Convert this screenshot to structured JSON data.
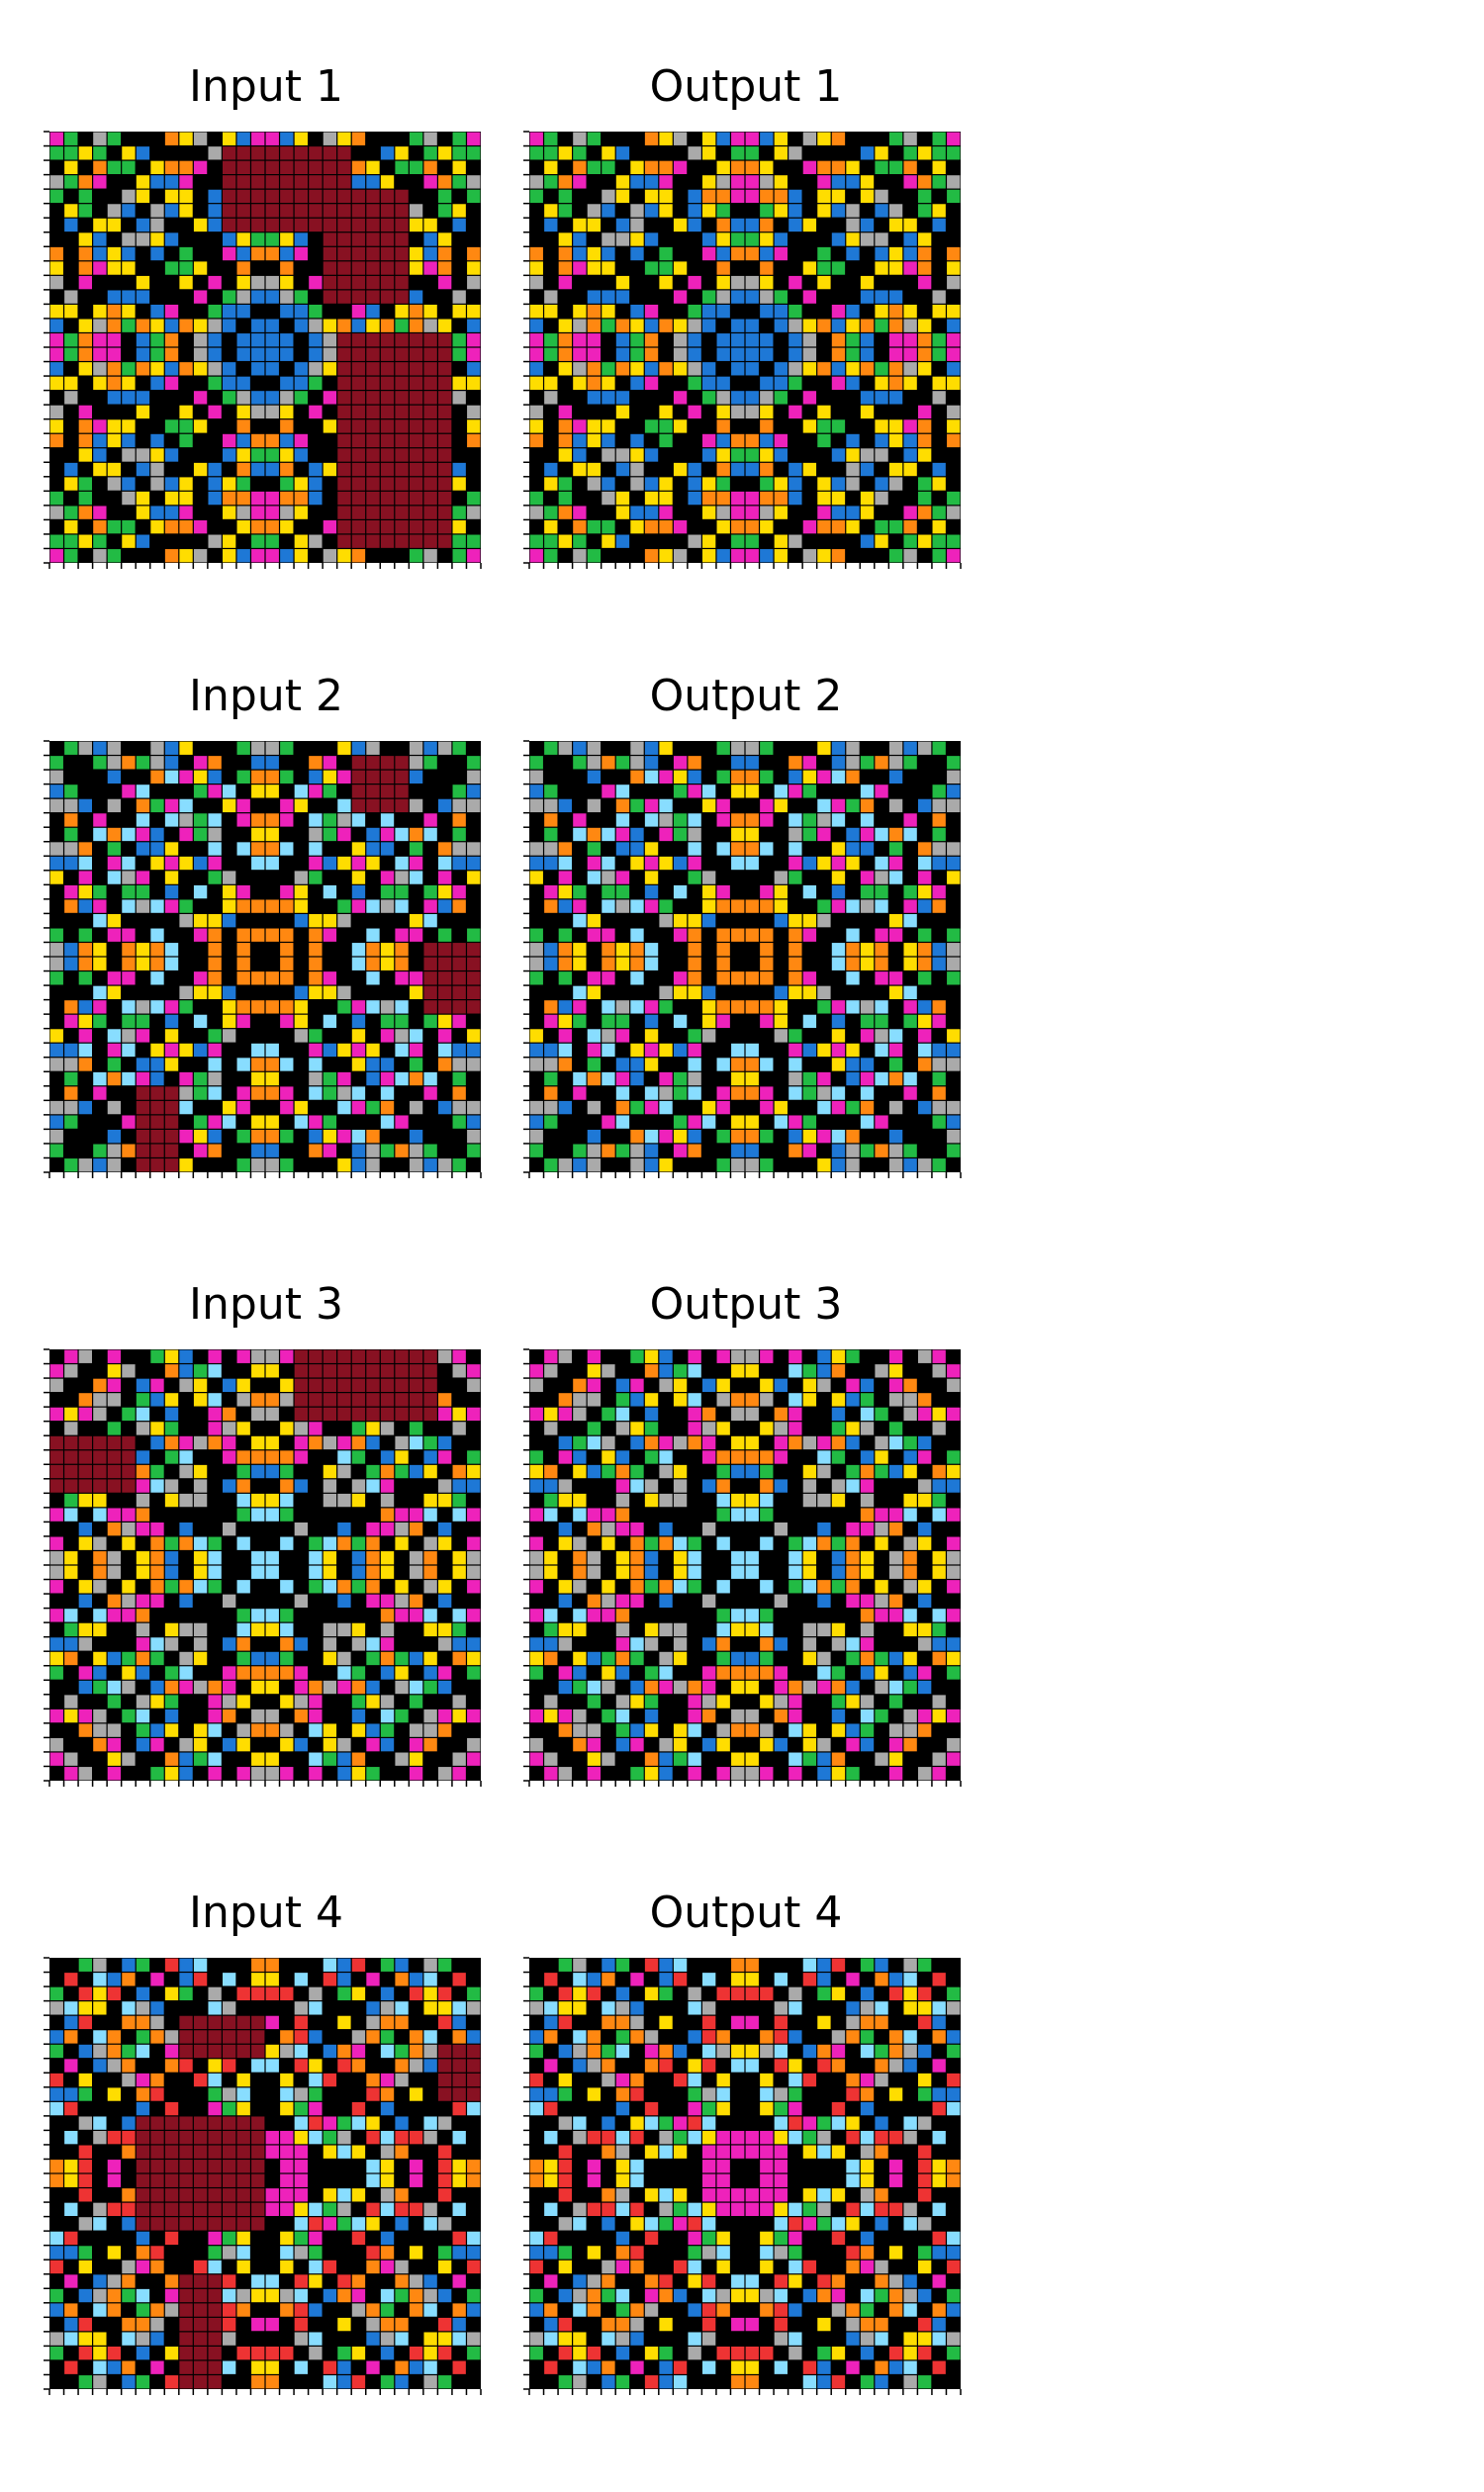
{
  "palette": [
    "#000000",
    "#1e78d6",
    "#ee3333",
    "#22bb44",
    "#ffdd00",
    "#aaaaaa",
    "#ee22bb",
    "#ff8811",
    "#88ddff",
    "#881122"
  ],
  "background": "#ffffff",
  "panels": [
    {
      "title": "Input 1"
    },
    {
      "title": "Output 1"
    },
    {
      "title": "Input 2"
    },
    {
      "title": "Output 2"
    },
    {
      "title": "Input 3"
    },
    {
      "title": "Output 3"
    },
    {
      "title": "Input 4"
    },
    {
      "title": "Output 4"
    }
  ],
  "grids": [
    {
      "seed": 1,
      "rows": 30,
      "cols": 30,
      "colors": [
        7,
        4,
        1,
        5,
        6,
        3
      ],
      "center": 1,
      "masks": [
        [
          1,
          12,
          6,
          9
        ],
        [
          4,
          19,
          8,
          6
        ],
        [
          14,
          20,
          15,
          8
        ]
      ]
    },
    {
      "seed": 2,
      "rows": 30,
      "cols": 30,
      "colors": [
        7,
        4,
        1,
        5,
        6,
        3
      ],
      "center": 1,
      "masks": []
    },
    {
      "seed": 3,
      "rows": 30,
      "cols": 30,
      "colors": [
        7,
        1,
        8,
        5,
        6,
        3,
        4
      ],
      "center": 7,
      "masks": [
        [
          1,
          21,
          4,
          4
        ],
        [
          14,
          26,
          5,
          5
        ],
        [
          24,
          6,
          7,
          3
        ]
      ]
    },
    {
      "seed": 4,
      "rows": 30,
      "cols": 30,
      "colors": [
        7,
        1,
        8,
        5,
        6,
        3,
        4
      ],
      "center": 7,
      "masks": []
    },
    {
      "seed": 5,
      "rows": 30,
      "cols": 30,
      "colors": [
        8,
        7,
        4,
        1,
        5,
        3,
        6
      ],
      "center": 8,
      "masks": [
        [
          0,
          17,
          5,
          10
        ],
        [
          6,
          0,
          4,
          6
        ]
      ]
    },
    {
      "seed": 6,
      "rows": 30,
      "cols": 30,
      "colors": [
        8,
        7,
        4,
        1,
        5,
        3,
        6
      ],
      "center": 8,
      "masks": []
    },
    {
      "seed": 7,
      "rows": 30,
      "cols": 30,
      "colors": [
        2,
        7,
        4,
        1,
        3,
        8,
        6,
        5
      ],
      "center": 6,
      "masks": [
        [
          4,
          9,
          3,
          6
        ],
        [
          11,
          6,
          8,
          9
        ],
        [
          6,
          27,
          4,
          4
        ],
        [
          22,
          9,
          8,
          3
        ]
      ]
    },
    {
      "seed": 8,
      "rows": 30,
      "cols": 30,
      "colors": [
        2,
        7,
        4,
        1,
        3,
        8,
        6,
        5
      ],
      "center": 6,
      "masks": []
    }
  ]
}
